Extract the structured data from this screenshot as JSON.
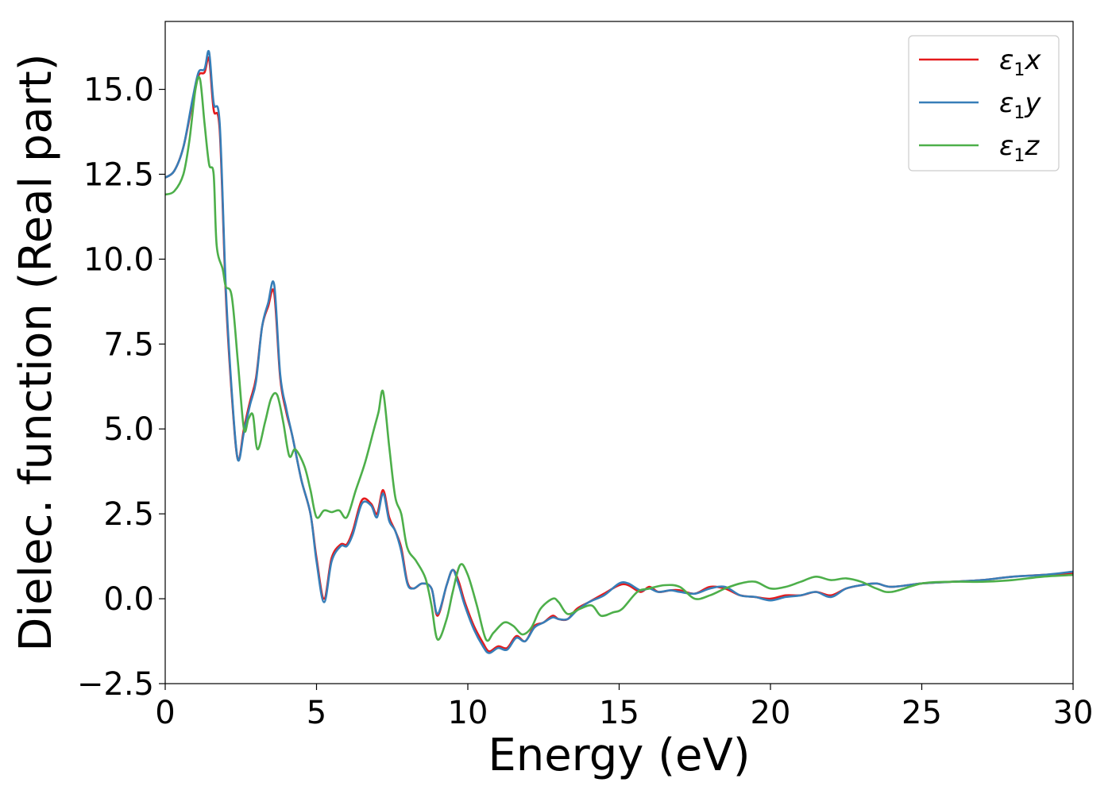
{
  "chart_data": {
    "type": "line",
    "title": "",
    "xlabel": "Energy (eV)",
    "ylabel": "Dielec. function (Real part)",
    "xlim": [
      0,
      30
    ],
    "ylim": [
      -2.5,
      17
    ],
    "xticks": [
      0,
      5,
      10,
      15,
      20,
      25,
      30
    ],
    "xtick_labels": [
      "0",
      "5",
      "10",
      "15",
      "20",
      "25",
      "30"
    ],
    "yticks": [
      -2.5,
      0.0,
      2.5,
      5.0,
      7.5,
      10.0,
      12.5,
      15.0
    ],
    "ytick_labels": [
      "−2.5",
      "0.0",
      "2.5",
      "5.0",
      "7.5",
      "10.0",
      "12.5",
      "15.0"
    ],
    "grid": false,
    "legend_position": "top-right",
    "series": [
      {
        "name": "ε₁x",
        "legend": {
          "base": "ε",
          "sub": "1",
          "suffix": "x"
        },
        "color": "#e41a1c",
        "x": [
          0,
          0.3,
          0.6,
          0.9,
          1.1,
          1.3,
          1.45,
          1.6,
          1.8,
          2.0,
          2.2,
          2.4,
          2.6,
          2.8,
          3.0,
          3.2,
          3.4,
          3.6,
          3.8,
          4.0,
          4.2,
          4.5,
          4.8,
          5.0,
          5.25,
          5.5,
          5.8,
          6.0,
          6.2,
          6.5,
          6.8,
          7.0,
          7.2,
          7.4,
          7.6,
          7.8,
          8.0,
          8.2,
          8.5,
          8.8,
          9.0,
          9.3,
          9.5,
          9.7,
          9.9,
          10.2,
          10.5,
          10.7,
          11.0,
          11.3,
          11.6,
          11.9,
          12.2,
          12.5,
          12.8,
          13.0,
          13.3,
          13.6,
          14.0,
          14.5,
          15.0,
          15.3,
          15.7,
          16.0,
          16.3,
          16.7,
          17.0,
          17.5,
          18.0,
          18.5,
          19.0,
          19.5,
          20.0,
          20.5,
          21.0,
          21.5,
          22.0,
          22.5,
          23.0,
          23.5,
          24.0,
          25.0,
          26.0,
          27.0,
          28.0,
          29.0,
          30.0
        ],
        "values": [
          12.4,
          12.6,
          13.3,
          14.6,
          15.4,
          15.5,
          15.9,
          14.4,
          13.8,
          9.0,
          6.0,
          4.1,
          5.0,
          5.8,
          6.5,
          8.0,
          8.6,
          9.0,
          6.5,
          5.5,
          4.8,
          3.5,
          2.5,
          1.2,
          0.0,
          1.2,
          1.6,
          1.6,
          2.0,
          2.9,
          2.8,
          2.5,
          3.2,
          2.4,
          2.0,
          1.5,
          0.5,
          0.3,
          0.45,
          0.3,
          -0.5,
          0.4,
          0.85,
          0.5,
          -0.1,
          -0.8,
          -1.3,
          -1.55,
          -1.4,
          -1.45,
          -1.1,
          -1.25,
          -0.8,
          -0.7,
          -0.5,
          -0.6,
          -0.6,
          -0.3,
          -0.1,
          0.15,
          0.4,
          0.4,
          0.2,
          0.35,
          0.2,
          0.25,
          0.25,
          0.15,
          0.35,
          0.3,
          0.1,
          0.05,
          0.0,
          0.1,
          0.1,
          0.2,
          0.1,
          0.3,
          0.4,
          0.45,
          0.35,
          0.45,
          0.5,
          0.55,
          0.65,
          0.7,
          0.75
        ]
      },
      {
        "name": "ε₁y",
        "legend": {
          "base": "ε",
          "sub": "1",
          "suffix": "y"
        },
        "color": "#377eb8",
        "x": [
          0,
          0.3,
          0.6,
          0.9,
          1.1,
          1.3,
          1.45,
          1.6,
          1.8,
          2.0,
          2.2,
          2.4,
          2.6,
          2.8,
          3.0,
          3.2,
          3.4,
          3.6,
          3.8,
          4.0,
          4.2,
          4.5,
          4.8,
          5.0,
          5.25,
          5.5,
          5.8,
          6.0,
          6.2,
          6.5,
          6.8,
          7.0,
          7.2,
          7.4,
          7.6,
          7.8,
          8.0,
          8.2,
          8.5,
          8.8,
          9.0,
          9.3,
          9.5,
          9.7,
          9.9,
          10.2,
          10.5,
          10.7,
          11.0,
          11.3,
          11.6,
          11.9,
          12.2,
          12.5,
          12.8,
          13.0,
          13.3,
          13.6,
          14.0,
          14.5,
          15.0,
          15.3,
          15.7,
          16.0,
          16.3,
          16.7,
          17.0,
          17.5,
          18.0,
          18.5,
          19.0,
          19.5,
          20.0,
          20.5,
          21.0,
          21.5,
          22.0,
          22.5,
          23.0,
          23.5,
          24.0,
          25.0,
          26.0,
          27.0,
          28.0,
          29.0,
          30.0
        ],
        "values": [
          12.4,
          12.6,
          13.3,
          14.7,
          15.5,
          15.6,
          16.1,
          14.6,
          14.0,
          9.2,
          6.1,
          4.1,
          4.9,
          5.7,
          6.4,
          8.0,
          8.7,
          9.25,
          6.6,
          5.6,
          4.8,
          3.5,
          2.5,
          1.1,
          -0.1,
          1.1,
          1.55,
          1.55,
          1.9,
          2.8,
          2.75,
          2.4,
          3.1,
          2.3,
          2.0,
          1.4,
          0.45,
          0.3,
          0.45,
          0.3,
          -0.45,
          0.4,
          0.85,
          0.4,
          -0.2,
          -0.9,
          -1.4,
          -1.6,
          -1.45,
          -1.5,
          -1.15,
          -1.25,
          -0.85,
          -0.7,
          -0.55,
          -0.6,
          -0.6,
          -0.35,
          -0.1,
          0.1,
          0.45,
          0.45,
          0.25,
          0.3,
          0.2,
          0.25,
          0.2,
          0.15,
          0.3,
          0.35,
          0.1,
          0.05,
          -0.05,
          0.05,
          0.1,
          0.2,
          0.05,
          0.3,
          0.4,
          0.45,
          0.35,
          0.45,
          0.5,
          0.55,
          0.65,
          0.7,
          0.8
        ]
      },
      {
        "name": "ε₁z",
        "legend": {
          "base": "ε",
          "sub": "1",
          "suffix": "z"
        },
        "color": "#4daf4a",
        "x": [
          0,
          0.3,
          0.6,
          0.8,
          1.0,
          1.15,
          1.3,
          1.45,
          1.6,
          1.7,
          1.9,
          2.0,
          2.2,
          2.4,
          2.6,
          2.75,
          2.9,
          3.05,
          3.3,
          3.5,
          3.7,
          3.9,
          4.1,
          4.3,
          4.6,
          4.8,
          5.0,
          5.25,
          5.5,
          5.75,
          6.0,
          6.3,
          6.6,
          6.9,
          7.05,
          7.2,
          7.4,
          7.6,
          7.8,
          8.0,
          8.3,
          8.6,
          8.8,
          9.0,
          9.3,
          9.5,
          9.75,
          10.0,
          10.3,
          10.6,
          10.85,
          11.2,
          11.5,
          11.8,
          12.1,
          12.4,
          12.8,
          13.0,
          13.3,
          13.7,
          14.1,
          14.4,
          14.8,
          15.1,
          15.6,
          16.0,
          16.5,
          17.0,
          17.5,
          18.0,
          18.5,
          19.0,
          19.5,
          20.0,
          20.5,
          21.0,
          21.5,
          22.0,
          22.5,
          23.0,
          23.5,
          24.0,
          25.0,
          26.0,
          27.0,
          28.0,
          29.0,
          30.0
        ],
        "values": [
          11.9,
          12.0,
          12.5,
          13.5,
          15.0,
          15.3,
          14.0,
          12.8,
          12.5,
          10.4,
          9.7,
          9.2,
          8.9,
          7.0,
          5.0,
          5.3,
          5.4,
          4.4,
          5.2,
          5.9,
          6.0,
          5.2,
          4.2,
          4.4,
          3.9,
          3.2,
          2.4,
          2.6,
          2.55,
          2.6,
          2.4,
          3.2,
          4.0,
          5.0,
          5.5,
          6.1,
          4.5,
          3.0,
          2.5,
          1.5,
          1.1,
          0.6,
          -0.2,
          -1.2,
          -0.6,
          0.2,
          1.0,
          0.7,
          -0.2,
          -1.2,
          -1.0,
          -0.7,
          -0.8,
          -1.05,
          -0.85,
          -0.3,
          0.0,
          -0.1,
          -0.45,
          -0.3,
          -0.2,
          -0.5,
          -0.4,
          -0.3,
          0.2,
          0.3,
          0.4,
          0.35,
          0.0,
          0.1,
          0.3,
          0.45,
          0.5,
          0.3,
          0.35,
          0.5,
          0.65,
          0.55,
          0.6,
          0.5,
          0.3,
          0.2,
          0.45,
          0.5,
          0.5,
          0.55,
          0.65,
          0.7
        ]
      }
    ]
  }
}
